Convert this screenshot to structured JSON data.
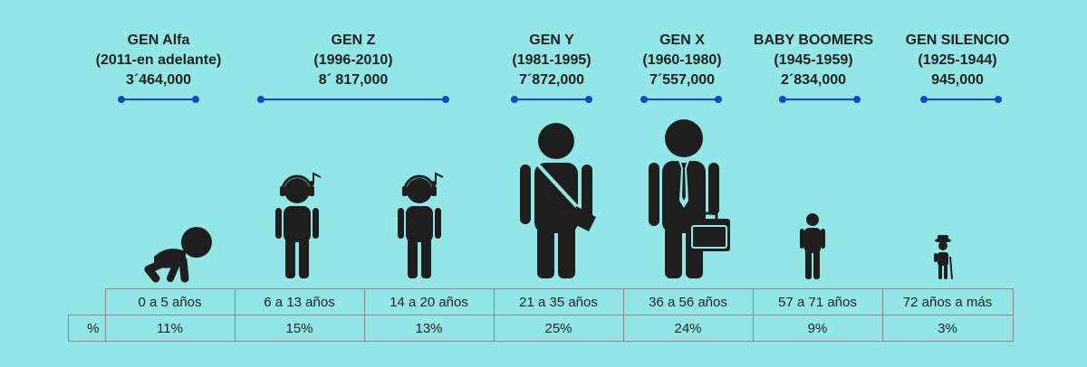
{
  "generations": [
    {
      "name": "GEN Alfa",
      "period": "(2011-en adelante)",
      "population": "3´464,000"
    },
    {
      "name": "GEN Z",
      "period": "(1996-2010)",
      "population": "8´ 817,000"
    },
    {
      "name": "GEN Y",
      "period": "(1981-1995)",
      "population": "7´872,000"
    },
    {
      "name": "GEN X",
      "period": "(1960-1980)",
      "population": "7´557,000"
    },
    {
      "name": "BABY BOOMERS",
      "period": "(1945-1959)",
      "population": "2´834,000"
    },
    {
      "name": "GEN SILENCIO",
      "period": "(1925-1944)",
      "population": "945,000"
    }
  ],
  "table": {
    "percent_symbol": "%",
    "age_ranges": [
      "0 a 5 años",
      "6 a 13 años",
      "14 a 20 años",
      "21 a 35 años",
      "36 a 56 años",
      "57 a 71 años",
      "72 años a más"
    ],
    "percentages": [
      "11%",
      "15%",
      "13%",
      "25%",
      "24%",
      "9%",
      "3%"
    ]
  },
  "figures": [
    {
      "icon": "crawling-baby-icon"
    },
    {
      "icon": "child-with-headphones-icon"
    },
    {
      "icon": "teen-with-headphones-icon"
    },
    {
      "icon": "young-adult-with-bag-icon"
    },
    {
      "icon": "adult-with-briefcase-icon"
    },
    {
      "icon": "senior-icon"
    },
    {
      "icon": "elderly-with-cane-icon"
    }
  ],
  "colors": {
    "background": "#92e6e6",
    "timeline": "#1746c4",
    "figure": "#1e1e1e"
  }
}
